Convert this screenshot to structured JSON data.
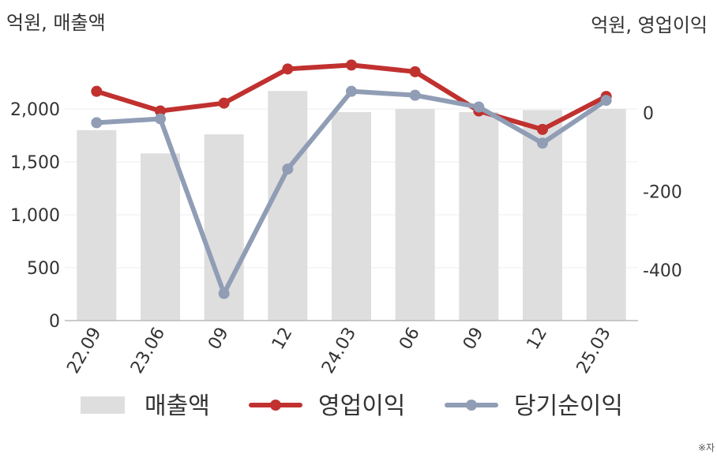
{
  "chart_data": {
    "type": "bar",
    "categories": [
      "22.09",
      "23.06",
      "09",
      "12",
      "24.03",
      "06",
      "09",
      "12",
      "25.03"
    ],
    "left_unit": "억원, 매출액",
    "right_unit": "억원, 영업이익",
    "y_left": {
      "ylim": [
        0,
        2500
      ],
      "ticks": [
        0,
        500,
        1000,
        1500,
        2000
      ],
      "tick_labels": [
        "0",
        "500",
        "1,000",
        "1,500",
        "2,000"
      ]
    },
    "y_right": {
      "ylim": [
        -530,
        130
      ],
      "ticks": [
        0,
        -200,
        -400
      ],
      "tick_labels": [
        "0",
        "-200",
        "-400"
      ]
    },
    "series": [
      {
        "name": "매출액",
        "type": "bar",
        "axis": "left",
        "color": "#dedede",
        "values": [
          1800,
          1580,
          1760,
          2170,
          1970,
          2000,
          1970,
          1990,
          2000
        ]
      },
      {
        "name": "영업이익",
        "type": "line",
        "axis": "right",
        "color": "#c0312f",
        "values": [
          55,
          5,
          25,
          112,
          122,
          105,
          5,
          -42,
          42
        ]
      },
      {
        "name": "당기순이익",
        "type": "line",
        "axis": "right",
        "color": "#909db5",
        "values": [
          -25,
          -15,
          -460,
          -143,
          55,
          45,
          15,
          -77,
          32
        ]
      }
    ],
    "grid": true,
    "legend": "bottom",
    "note": "※자"
  }
}
